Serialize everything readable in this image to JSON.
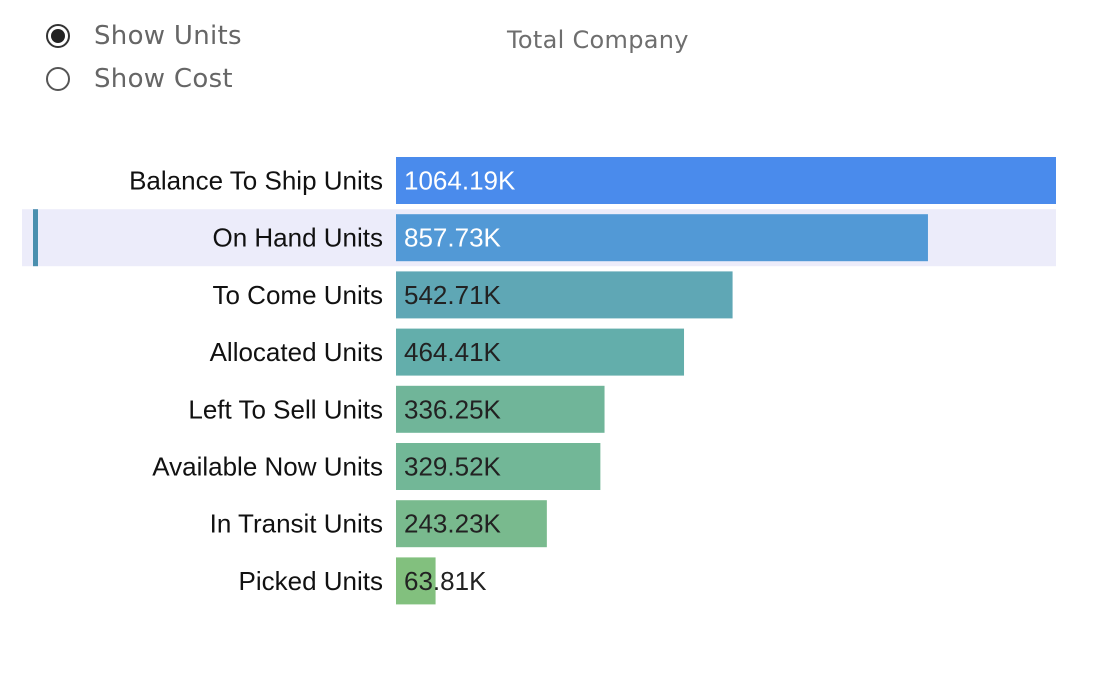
{
  "controls": {
    "options": [
      {
        "label": "Show Units",
        "selected": true
      },
      {
        "label": "Show Cost",
        "selected": false
      }
    ]
  },
  "chart_data": {
    "type": "bar",
    "orientation": "horizontal",
    "title": "Total Company",
    "categories": [
      "Balance To Ship Units",
      "On Hand Units",
      "To Come Units",
      "Allocated Units",
      "Left To Sell Units",
      "Available Now Units",
      "In Transit Units",
      "Picked Units"
    ],
    "values": [
      1064.19,
      857.73,
      542.71,
      464.41,
      336.25,
      329.52,
      243.23,
      63.81
    ],
    "value_labels": [
      "1064.19K",
      "857.73K",
      "542.71K",
      "464.41K",
      "336.25K",
      "329.52K",
      "243.23K",
      "63.81K"
    ],
    "unit": "K",
    "xlim": [
      0,
      1064.19
    ],
    "colors": [
      "#4a8bec",
      "#5299d6",
      "#5fa7b5",
      "#63aeab",
      "#70b599",
      "#72b797",
      "#79ba8e",
      "#82c07e"
    ],
    "value_label_colors": [
      "#ffffff",
      "#ffffff",
      "#222222",
      "#222222",
      "#222222",
      "#222222",
      "#222222",
      "#222222"
    ],
    "highlighted_index": 1,
    "grid": false,
    "legend": "none"
  }
}
